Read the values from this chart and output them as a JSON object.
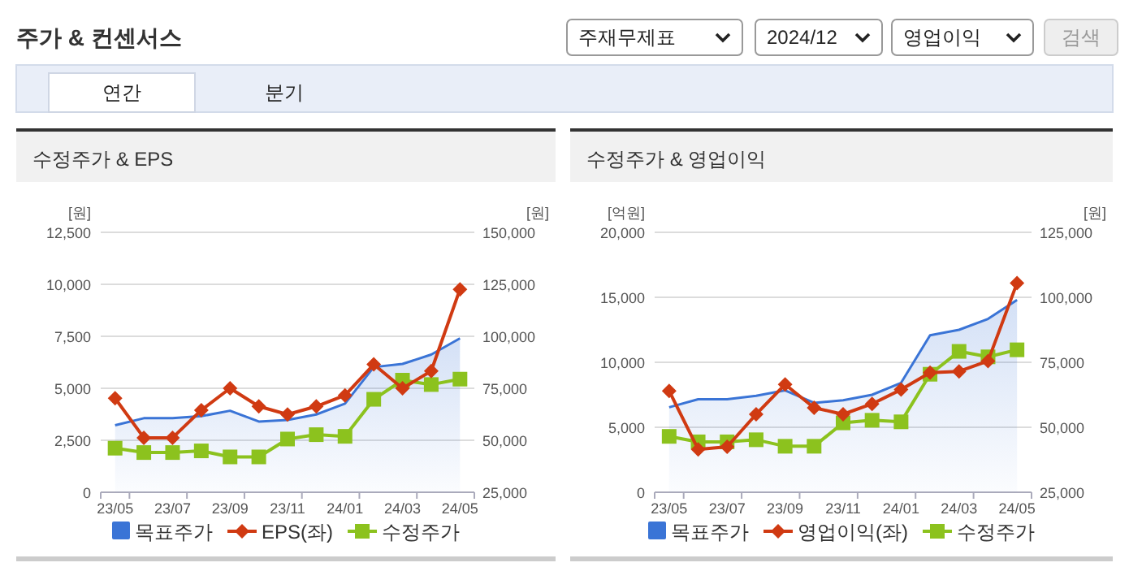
{
  "chart_data": [
    {
      "type": "other",
      "title": "주가 & 컨센서스",
      "annotations": [
        "주재무제표",
        "2024/12",
        "영업이익",
        "검색",
        "연간",
        "분기"
      ]
    },
    {
      "type": "line",
      "title": "수정주가 & EPS",
      "ylabel": "[원]",
      "y2label": "[원]",
      "categories": [
        "23/05",
        null,
        "23/07",
        null,
        "23/09",
        null,
        "23/11",
        null,
        "24/01",
        null,
        "24/03",
        null,
        "24/05"
      ],
      "ylim": [
        0,
        12500
      ],
      "yticks": [
        0,
        {
          "value": 2500,
          "label": "2,500"
        },
        {
          "value": 5000,
          "label": "5,000"
        },
        {
          "value": 7500,
          "label": "7,500"
        },
        {
          "value": 10000,
          "label": "10,000"
        },
        {
          "value": 12500,
          "label": "12,500"
        }
      ],
      "y2lim": [
        25000,
        150000
      ],
      "y2ticks": [
        {
          "value": 25000,
          "label": "25,000"
        },
        {
          "value": 50000,
          "label": "50,000"
        },
        {
          "value": 75000,
          "label": "75,000"
        },
        {
          "value": 100000,
          "label": "100,000"
        },
        {
          "value": 125000,
          "label": "125,000"
        },
        {
          "value": 150000,
          "label": "150,000"
        }
      ],
      "grid": "y",
      "legend": "bottom",
      "series": [
        {
          "name": "목표주가",
          "type": "area",
          "axis": "y2",
          "color": "#3a74d6",
          "marker": "none",
          "values": [
            57200,
            60600,
            60600,
            61600,
            64200,
            59000,
            59800,
            62400,
            67600,
            85200,
            86700,
            91200,
            99000
          ]
        },
        {
          "name": "EPS(좌)",
          "type": "line",
          "color": "#d03a12",
          "marker": "diamond",
          "values": [
            4520,
            2620,
            2620,
            3950,
            5000,
            4130,
            3740,
            4130,
            4660,
            6150,
            5000,
            5830,
            9760
          ]
        },
        {
          "name": "수정주가",
          "type": "line",
          "axis": "y2",
          "color": "#8cc21e",
          "marker": "square",
          "values": [
            46200,
            44100,
            44100,
            44900,
            42000,
            42000,
            50600,
            52700,
            51900,
            69700,
            78900,
            76800,
            79400
          ]
        }
      ]
    },
    {
      "type": "line",
      "title": "수정주가 & 영업이익",
      "ylabel": "[억원]",
      "y2label": "[원]",
      "categories": [
        "23/05",
        null,
        "23/07",
        null,
        "23/09",
        null,
        "23/11",
        null,
        "24/01",
        null,
        "24/03",
        null,
        "24/05"
      ],
      "ylim": [
        0,
        20000
      ],
      "yticks": [
        0,
        {
          "value": 5000,
          "label": "5,000"
        },
        {
          "value": 10000,
          "label": "10,000"
        },
        {
          "value": 15000,
          "label": "15,000"
        },
        {
          "value": 20000,
          "label": "20,000"
        }
      ],
      "y2lim": [
        25000,
        125000
      ],
      "y2ticks": [
        {
          "value": 25000,
          "label": "25,000"
        },
        {
          "value": 50000,
          "label": "50,000"
        },
        {
          "value": 75000,
          "label": "75,000"
        },
        {
          "value": 100000,
          "label": "100,000"
        },
        {
          "value": 125000,
          "label": "125,000"
        }
      ],
      "grid": "y",
      "legend": "bottom",
      "series": [
        {
          "name": "목표주가",
          "type": "area",
          "axis": "y2",
          "color": "#3a74d6",
          "marker": "none",
          "values": [
            57700,
            60800,
            60800,
            62100,
            64200,
            59400,
            60400,
            62500,
            67100,
            85400,
            87500,
            91700,
            99000
          ]
        },
        {
          "name": "영업이익(좌)",
          "type": "line",
          "color": "#d03a12",
          "marker": "diamond",
          "values": [
            7800,
            3300,
            3500,
            6000,
            8300,
            6500,
            6000,
            6800,
            7900,
            9200,
            9300,
            10100,
            16100
          ]
        },
        {
          "name": "수정주가",
          "type": "line",
          "axis": "y2",
          "color": "#8cc21e",
          "marker": "square",
          "values": [
            46500,
            44400,
            44400,
            45200,
            42700,
            42700,
            51700,
            52700,
            52100,
            70400,
            79200,
            77100,
            79800
          ]
        }
      ]
    }
  ]
}
